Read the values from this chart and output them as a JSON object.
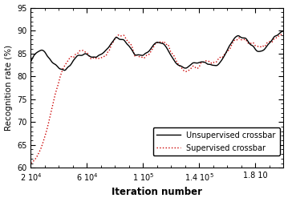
{
  "title": "",
  "xlabel": "Iteration number",
  "ylabel": "Recognition rate (%)",
  "xlim": [
    20000,
    200000
  ],
  "ylim": [
    60,
    95
  ],
  "yticks": [
    60,
    65,
    70,
    75,
    80,
    85,
    90,
    95
  ],
  "xtick_positions": [
    20000,
    60000,
    100000,
    140000,
    180000
  ],
  "legend_entries": [
    "Unsupervised crossbar",
    "Supervised crossbar"
  ],
  "line1_color": "#000000",
  "line2_color": "#cc0000",
  "background_color": "#ffffff",
  "seed": 12345,
  "figsize": [
    3.59,
    2.52
  ],
  "dpi": 100
}
